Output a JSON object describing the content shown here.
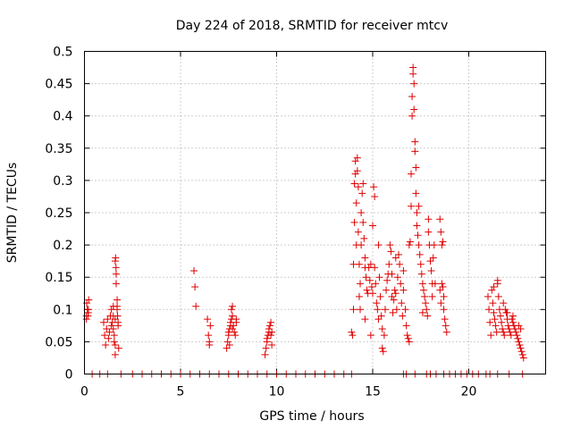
{
  "chart_data": {
    "type": "scatter",
    "title": "Day 224 of 2018, SRMTID for receiver mtcv",
    "xlabel": "GPS time / hours",
    "ylabel": "SRMTID / TECUs",
    "xlim": [
      0,
      24
    ],
    "ylim": [
      0,
      0.5
    ],
    "grid": true,
    "marker": "plus",
    "color": "#e00000",
    "x_ticks": [
      0,
      5,
      10,
      15,
      20
    ],
    "x_tick_labels": [
      "0",
      "5",
      "10",
      "15",
      "20"
    ],
    "y_ticks": [
      0,
      0.05,
      0.1,
      0.15,
      0.2,
      0.25,
      0.3,
      0.35,
      0.4,
      0.45,
      0.5
    ],
    "y_tick_labels": [
      "0",
      "0.05",
      "0.1",
      "0.15",
      "0.2",
      "0.25",
      "0.3",
      "0.35",
      "0.4",
      "0.45",
      "0.5"
    ],
    "series": [
      {
        "name": "SRMTID",
        "points": [
          [
            0.1,
            0.09
          ],
          [
            0.12,
            0.11
          ],
          [
            0.15,
            0.1
          ],
          [
            0.18,
            0.09
          ],
          [
            0.2,
            0.095
          ],
          [
            0.22,
            0.115
          ],
          [
            0.1,
            0.085
          ],
          [
            0.2,
            0.1
          ],
          [
            1.0,
            0.08
          ],
          [
            1.05,
            0.06
          ],
          [
            1.1,
            0.045
          ],
          [
            1.15,
            0.07
          ],
          [
            1.2,
            0.085
          ],
          [
            1.25,
            0.055
          ],
          [
            1.3,
            0.065
          ],
          [
            1.35,
            0.09
          ],
          [
            1.4,
            0.075
          ],
          [
            1.45,
            0.08
          ],
          [
            1.5,
            0.07
          ],
          [
            1.5,
            0.09
          ],
          [
            1.55,
            0.06
          ],
          [
            1.55,
            0.05
          ],
          [
            1.6,
            0.045
          ],
          [
            1.6,
            0.085
          ],
          [
            1.6,
            0.175
          ],
          [
            1.62,
            0.18
          ],
          [
            1.64,
            0.165
          ],
          [
            1.65,
            0.155
          ],
          [
            1.65,
            0.14
          ],
          [
            1.7,
            0.115
          ],
          [
            1.7,
            0.105
          ],
          [
            1.7,
            0.1
          ],
          [
            1.72,
            0.09
          ],
          [
            1.75,
            0.08
          ],
          [
            1.75,
            0.075
          ],
          [
            1.78,
            0.04
          ],
          [
            1.6,
            0.03
          ],
          [
            1.4,
            0.1
          ],
          [
            1.5,
            0.105
          ],
          [
            5.7,
            0.16
          ],
          [
            5.75,
            0.135
          ],
          [
            5.8,
            0.105
          ],
          [
            6.4,
            0.085
          ],
          [
            6.45,
            0.06
          ],
          [
            6.5,
            0.05
          ],
          [
            6.5,
            0.045
          ],
          [
            6.55,
            0.075
          ],
          [
            7.4,
            0.04
          ],
          [
            7.45,
            0.05
          ],
          [
            7.5,
            0.06
          ],
          [
            7.5,
            0.065
          ],
          [
            7.55,
            0.07
          ],
          [
            7.6,
            0.075
          ],
          [
            7.6,
            0.08
          ],
          [
            7.65,
            0.085
          ],
          [
            7.65,
            0.1
          ],
          [
            7.7,
            0.105
          ],
          [
            7.7,
            0.09
          ],
          [
            7.75,
            0.075
          ],
          [
            7.8,
            0.065
          ],
          [
            7.85,
            0.06
          ],
          [
            7.9,
            0.08
          ],
          [
            7.9,
            0.085
          ],
          [
            7.55,
            0.045
          ],
          [
            7.7,
            0.07
          ],
          [
            9.4,
            0.03
          ],
          [
            9.45,
            0.04
          ],
          [
            9.5,
            0.05
          ],
          [
            9.5,
            0.055
          ],
          [
            9.55,
            0.06
          ],
          [
            9.6,
            0.065
          ],
          [
            9.6,
            0.07
          ],
          [
            9.65,
            0.075
          ],
          [
            9.7,
            0.08
          ],
          [
            9.7,
            0.06
          ],
          [
            9.75,
            0.045
          ],
          [
            9.75,
            0.065
          ],
          [
            13.9,
            0.065
          ],
          [
            13.95,
            0.06
          ],
          [
            14.0,
            0.1
          ],
          [
            14.0,
            0.17
          ],
          [
            14.05,
            0.235
          ],
          [
            14.05,
            0.295
          ],
          [
            14.1,
            0.33
          ],
          [
            14.1,
            0.31
          ],
          [
            14.15,
            0.265
          ],
          [
            14.15,
            0.2
          ],
          [
            14.2,
            0.335
          ],
          [
            14.2,
            0.315
          ],
          [
            14.25,
            0.29
          ],
          [
            14.25,
            0.22
          ],
          [
            14.3,
            0.17
          ],
          [
            14.3,
            0.12
          ],
          [
            14.35,
            0.1
          ],
          [
            14.35,
            0.14
          ],
          [
            14.4,
            0.2
          ],
          [
            14.4,
            0.25
          ],
          [
            14.45,
            0.28
          ],
          [
            14.5,
            0.295
          ],
          [
            14.5,
            0.235
          ],
          [
            14.55,
            0.21
          ],
          [
            14.6,
            0.18
          ],
          [
            14.6,
            0.165
          ],
          [
            14.65,
            0.15
          ],
          [
            14.7,
            0.13
          ],
          [
            14.75,
            0.125
          ],
          [
            14.8,
            0.165
          ],
          [
            14.85,
            0.145
          ],
          [
            14.9,
            0.17
          ],
          [
            14.95,
            0.135
          ],
          [
            15.0,
            0.125
          ],
          [
            15.0,
            0.23
          ],
          [
            15.05,
            0.29
          ],
          [
            15.1,
            0.275
          ],
          [
            15.1,
            0.165
          ],
          [
            15.15,
            0.14
          ],
          [
            15.2,
            0.11
          ],
          [
            15.25,
            0.1
          ],
          [
            15.3,
            0.085
          ],
          [
            15.35,
            0.15
          ],
          [
            15.4,
            0.12
          ],
          [
            15.45,
            0.09
          ],
          [
            15.5,
            0.07
          ],
          [
            15.5,
            0.04
          ],
          [
            15.55,
            0.035
          ],
          [
            15.6,
            0.06
          ],
          [
            15.65,
            0.1
          ],
          [
            15.7,
            0.13
          ],
          [
            15.75,
            0.145
          ],
          [
            15.8,
            0.155
          ],
          [
            15.85,
            0.17
          ],
          [
            15.9,
            0.2
          ],
          [
            15.95,
            0.19
          ],
          [
            16.0,
            0.155
          ],
          [
            16.0,
            0.12
          ],
          [
            16.05,
            0.095
          ],
          [
            16.1,
            0.115
          ],
          [
            16.15,
            0.13
          ],
          [
            16.2,
            0.125
          ],
          [
            16.25,
            0.1
          ],
          [
            16.3,
            0.15
          ],
          [
            16.35,
            0.185
          ],
          [
            16.4,
            0.17
          ],
          [
            16.45,
            0.14
          ],
          [
            16.5,
            0.11
          ],
          [
            16.55,
            0.09
          ],
          [
            16.6,
            0.16
          ],
          [
            16.6,
            0.13
          ],
          [
            16.7,
            0.1
          ],
          [
            16.75,
            0.075
          ],
          [
            16.8,
            0.06
          ],
          [
            16.85,
            0.055
          ],
          [
            16.9,
            0.05
          ],
          [
            16.9,
            0.2
          ],
          [
            16.95,
            0.205
          ],
          [
            17.0,
            0.26
          ],
          [
            17.0,
            0.31
          ],
          [
            17.05,
            0.4
          ],
          [
            17.05,
            0.43
          ],
          [
            17.1,
            0.465
          ],
          [
            17.1,
            0.475
          ],
          [
            17.15,
            0.45
          ],
          [
            17.15,
            0.41
          ],
          [
            17.2,
            0.36
          ],
          [
            17.2,
            0.345
          ],
          [
            17.25,
            0.32
          ],
          [
            17.25,
            0.28
          ],
          [
            17.3,
            0.25
          ],
          [
            17.3,
            0.23
          ],
          [
            17.35,
            0.215
          ],
          [
            17.4,
            0.2
          ],
          [
            17.45,
            0.185
          ],
          [
            17.5,
            0.17
          ],
          [
            17.55,
            0.155
          ],
          [
            17.6,
            0.14
          ],
          [
            17.65,
            0.13
          ],
          [
            17.7,
            0.12
          ],
          [
            17.75,
            0.11
          ],
          [
            17.8,
            0.1
          ],
          [
            17.85,
            0.09
          ],
          [
            17.9,
            0.24
          ],
          [
            17.9,
            0.22
          ],
          [
            17.95,
            0.2
          ],
          [
            18.0,
            0.175
          ],
          [
            18.05,
            0.16
          ],
          [
            18.1,
            0.14
          ],
          [
            18.1,
            0.12
          ],
          [
            18.15,
            0.18
          ],
          [
            18.2,
            0.2
          ],
          [
            18.25,
            0.14
          ],
          [
            14.6,
            0.085
          ],
          [
            14.9,
            0.06
          ],
          [
            15.3,
            0.2
          ],
          [
            16.2,
            0.18
          ],
          [
            17.4,
            0.26
          ],
          [
            17.6,
            0.095
          ],
          [
            18.5,
            0.24
          ],
          [
            18.55,
            0.22
          ],
          [
            18.6,
            0.2
          ],
          [
            18.6,
            0.14
          ],
          [
            18.65,
            0.135
          ],
          [
            18.7,
            0.12
          ],
          [
            18.7,
            0.1
          ],
          [
            18.75,
            0.085
          ],
          [
            18.8,
            0.075
          ],
          [
            18.85,
            0.065
          ],
          [
            18.5,
            0.13
          ],
          [
            18.55,
            0.11
          ],
          [
            18.65,
            0.205
          ],
          [
            21.0,
            0.12
          ],
          [
            21.05,
            0.1
          ],
          [
            21.1,
            0.08
          ],
          [
            21.15,
            0.06
          ],
          [
            21.2,
            0.13
          ],
          [
            21.25,
            0.11
          ],
          [
            21.3,
            0.095
          ],
          [
            21.35,
            0.085
          ],
          [
            21.4,
            0.075
          ],
          [
            21.45,
            0.065
          ],
          [
            21.5,
            0.14
          ],
          [
            21.55,
            0.12
          ],
          [
            21.6,
            0.1
          ],
          [
            21.65,
            0.09
          ],
          [
            21.7,
            0.08
          ],
          [
            21.75,
            0.07
          ],
          [
            21.8,
            0.065
          ],
          [
            21.85,
            0.06
          ],
          [
            21.9,
            0.1
          ],
          [
            21.95,
            0.095
          ],
          [
            22.0,
            0.085
          ],
          [
            22.05,
            0.075
          ],
          [
            22.1,
            0.07
          ],
          [
            22.15,
            0.065
          ],
          [
            22.2,
            0.06
          ],
          [
            22.25,
            0.085
          ],
          [
            22.3,
            0.08
          ],
          [
            22.35,
            0.075
          ],
          [
            22.4,
            0.07
          ],
          [
            22.45,
            0.065
          ],
          [
            22.5,
            0.06
          ],
          [
            22.55,
            0.055
          ],
          [
            22.6,
            0.05
          ],
          [
            22.65,
            0.045
          ],
          [
            22.7,
            0.04
          ],
          [
            22.75,
            0.035
          ],
          [
            22.8,
            0.03
          ],
          [
            22.85,
            0.025
          ],
          [
            22.6,
            0.075
          ],
          [
            22.7,
            0.07
          ],
          [
            21.3,
            0.135
          ],
          [
            21.5,
            0.145
          ],
          [
            21.8,
            0.11
          ],
          [
            22.0,
            0.095
          ],
          [
            22.3,
            0.09
          ],
          [
            0.4,
            0
          ],
          [
            0.8,
            0
          ],
          [
            1.2,
            0
          ],
          [
            1.9,
            0
          ],
          [
            2.5,
            0
          ],
          [
            3.0,
            0
          ],
          [
            3.5,
            0
          ],
          [
            4.0,
            0
          ],
          [
            4.5,
            0
          ],
          [
            5.0,
            0
          ],
          [
            5.5,
            0
          ],
          [
            6.0,
            0
          ],
          [
            6.5,
            0
          ],
          [
            7.0,
            0
          ],
          [
            7.5,
            0
          ],
          [
            8.0,
            0
          ],
          [
            8.5,
            0
          ],
          [
            9.0,
            0
          ],
          [
            9.5,
            0
          ],
          [
            10.0,
            0
          ],
          [
            10.5,
            0
          ],
          [
            11.0,
            0
          ],
          [
            11.5,
            0
          ],
          [
            12.0,
            0
          ],
          [
            12.5,
            0
          ],
          [
            13.0,
            0
          ],
          [
            13.5,
            0
          ],
          [
            13.9,
            0
          ],
          [
            16.6,
            0
          ],
          [
            16.75,
            0
          ],
          [
            17.2,
            0
          ],
          [
            17.8,
            0
          ],
          [
            18.0,
            0
          ],
          [
            18.3,
            0
          ],
          [
            18.7,
            0
          ],
          [
            19.0,
            0
          ],
          [
            19.3,
            0
          ],
          [
            19.6,
            0
          ],
          [
            19.9,
            0
          ],
          [
            20.2,
            0
          ],
          [
            20.5,
            0
          ],
          [
            20.9,
            0
          ],
          [
            21.1,
            0
          ],
          [
            21.5,
            0
          ],
          [
            22.1,
            0
          ],
          [
            22.8,
            0
          ]
        ]
      }
    ]
  }
}
